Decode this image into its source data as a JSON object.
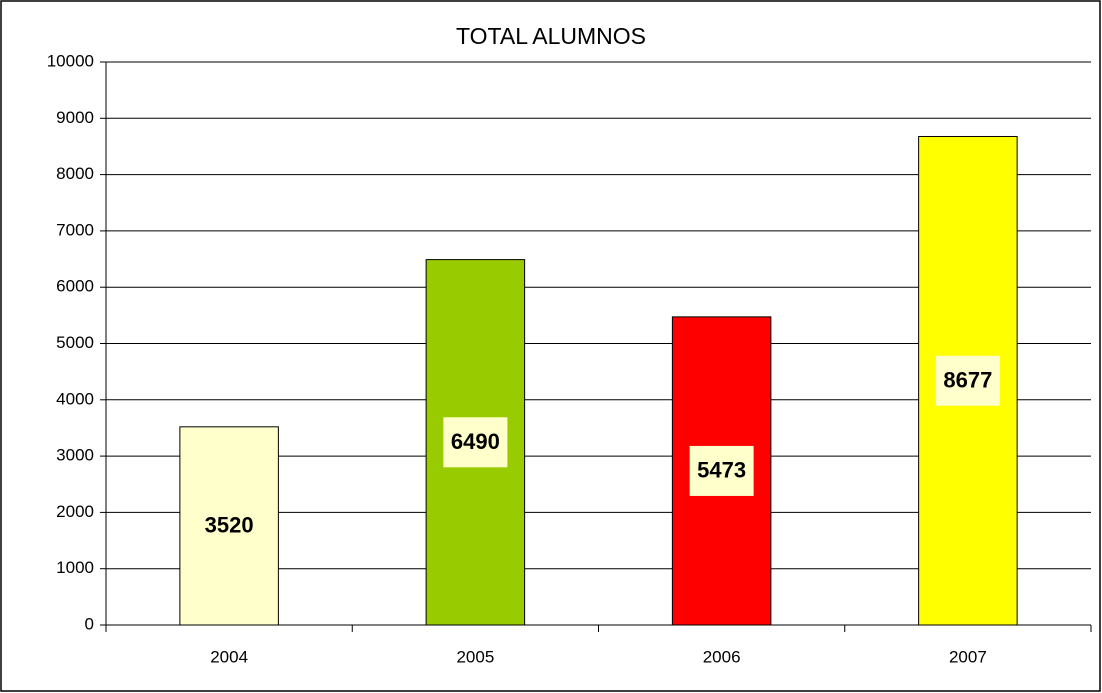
{
  "chart_data": {
    "type": "bar",
    "title": "TOTAL ALUMNOS",
    "categories": [
      "2004",
      "2005",
      "2006",
      "2007"
    ],
    "values": [
      3520,
      6490,
      5473,
      8677
    ],
    "colors": [
      "#FFFFCC",
      "#99CC00",
      "#FF0000",
      "#FFFF00"
    ],
    "label_box_color": "#FFFFCC",
    "ylim": [
      0,
      10000
    ],
    "yticks": [
      0,
      1000,
      2000,
      3000,
      4000,
      5000,
      6000,
      7000,
      8000,
      9000,
      10000
    ],
    "grid": true,
    "legend": false,
    "data_labels": true
  }
}
